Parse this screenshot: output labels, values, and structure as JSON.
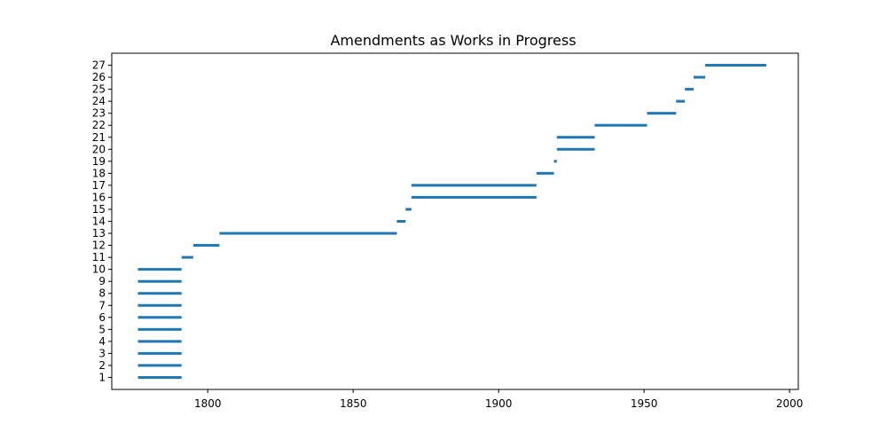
{
  "chart_data": {
    "type": "bar",
    "orientation": "horizontal-range",
    "title": "Amendments as Works in Progress",
    "xlabel": "",
    "ylabel": "",
    "xlim": [
      1767,
      2003
    ],
    "ylim": [
      0,
      28
    ],
    "xticks": [
      1800,
      1850,
      1900,
      1950,
      2000
    ],
    "yticks": [
      1,
      2,
      3,
      4,
      5,
      6,
      7,
      8,
      9,
      10,
      11,
      12,
      13,
      14,
      15,
      16,
      17,
      18,
      19,
      20,
      21,
      22,
      23,
      24,
      25,
      26,
      27
    ],
    "grid": false,
    "color": "#1f77b4",
    "bars": [
      {
        "y": 1,
        "start": 1776,
        "end": 1791
      },
      {
        "y": 2,
        "start": 1776,
        "end": 1791
      },
      {
        "y": 3,
        "start": 1776,
        "end": 1791
      },
      {
        "y": 4,
        "start": 1776,
        "end": 1791
      },
      {
        "y": 5,
        "start": 1776,
        "end": 1791
      },
      {
        "y": 6,
        "start": 1776,
        "end": 1791
      },
      {
        "y": 7,
        "start": 1776,
        "end": 1791
      },
      {
        "y": 8,
        "start": 1776,
        "end": 1791
      },
      {
        "y": 9,
        "start": 1776,
        "end": 1791
      },
      {
        "y": 10,
        "start": 1776,
        "end": 1791
      },
      {
        "y": 11,
        "start": 1791,
        "end": 1795
      },
      {
        "y": 12,
        "start": 1795,
        "end": 1804
      },
      {
        "y": 13,
        "start": 1804,
        "end": 1865
      },
      {
        "y": 14,
        "start": 1865,
        "end": 1868
      },
      {
        "y": 15,
        "start": 1868,
        "end": 1870
      },
      {
        "y": 16,
        "start": 1870,
        "end": 1913
      },
      {
        "y": 17,
        "start": 1870,
        "end": 1913
      },
      {
        "y": 18,
        "start": 1913,
        "end": 1919
      },
      {
        "y": 19,
        "start": 1919,
        "end": 1920
      },
      {
        "y": 20,
        "start": 1920,
        "end": 1933
      },
      {
        "y": 21,
        "start": 1920,
        "end": 1933
      },
      {
        "y": 22,
        "start": 1933,
        "end": 1951
      },
      {
        "y": 23,
        "start": 1951,
        "end": 1961
      },
      {
        "y": 24,
        "start": 1961,
        "end": 1964
      },
      {
        "y": 25,
        "start": 1964,
        "end": 1967
      },
      {
        "y": 26,
        "start": 1967,
        "end": 1971
      },
      {
        "y": 27,
        "start": 1971,
        "end": 1992
      }
    ]
  }
}
